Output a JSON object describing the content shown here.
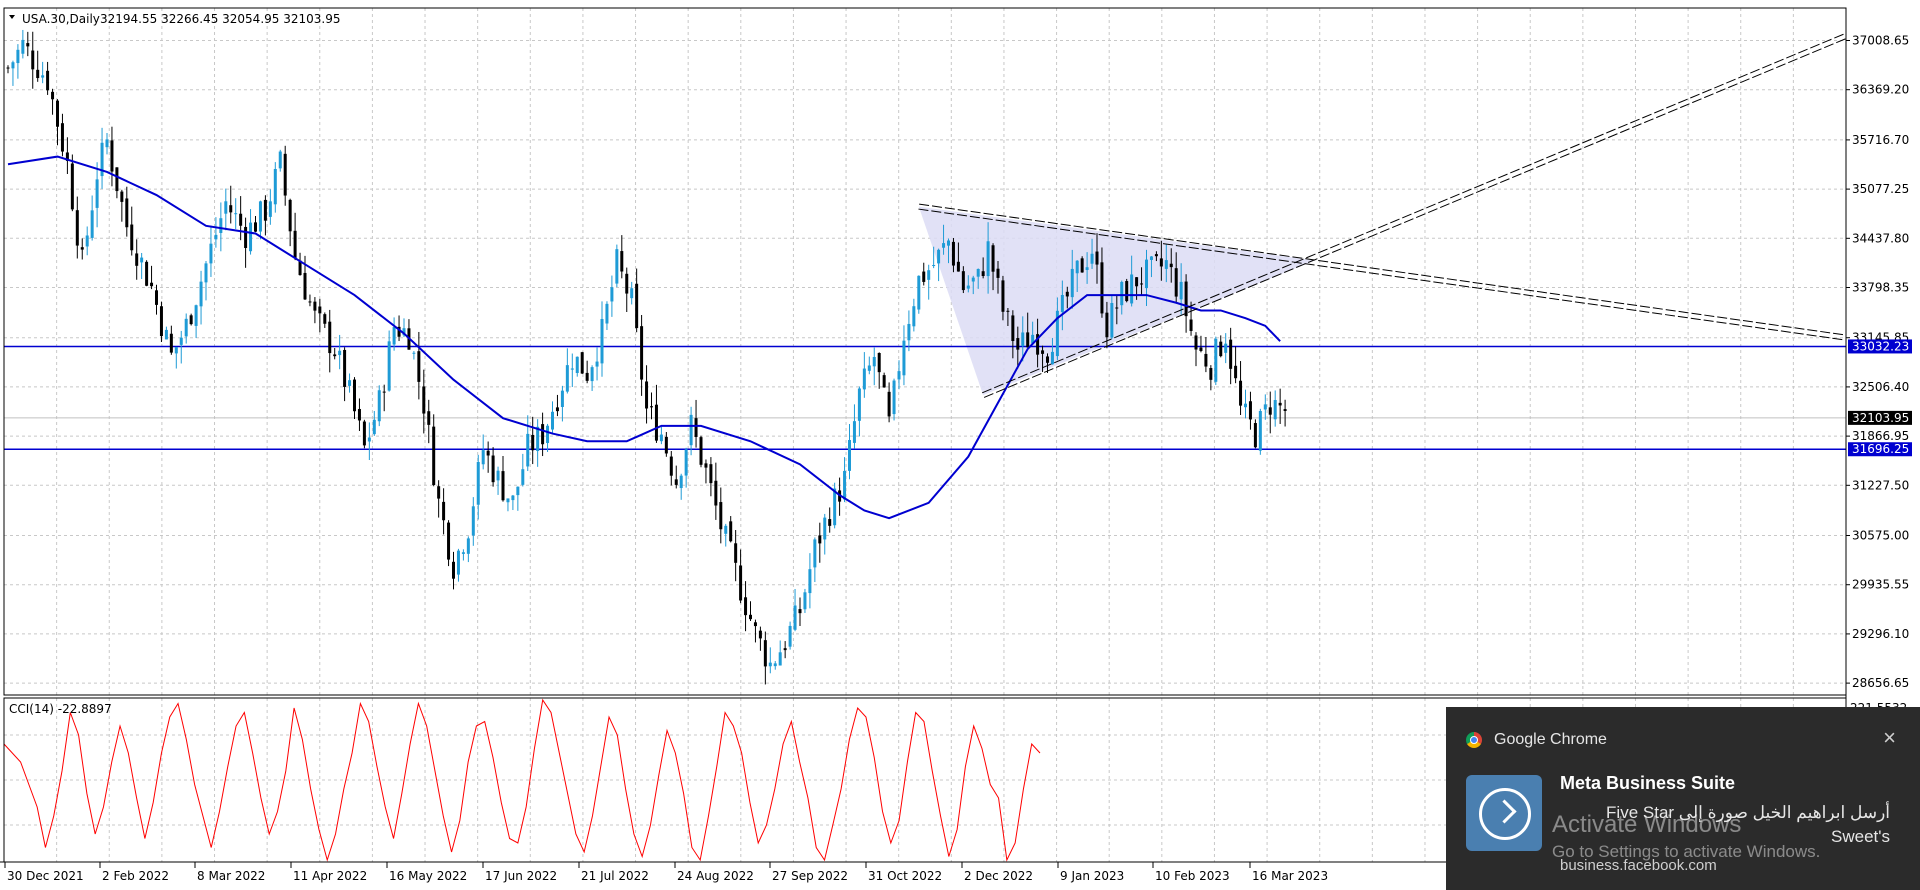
{
  "header": {
    "symbol_label": "USA.30,Daily",
    "ohlc": "32194.55 32266.45 32054.95 32103.95"
  },
  "indicator": {
    "label": "CCI(14) -22.8897",
    "scale_top": "221.5532"
  },
  "chart_data": {
    "type": "candlestick",
    "title": "USA.30,Daily",
    "ylim": [
      28400,
      37300
    ],
    "y_ticks": [
      37008.65,
      36369.2,
      35716.7,
      35077.25,
      34437.8,
      33798.35,
      33145.85,
      32506.4,
      31866.95,
      31227.5,
      30575.0,
      29935.55,
      29296.1,
      28656.65
    ],
    "x_ticks": [
      "30 Dec 2021",
      "2 Feb 2022",
      "8 Mar 2022",
      "11 Apr 2022",
      "16 May 2022",
      "17 Jun 2022",
      "21 Jul 2022",
      "24 Aug 2022",
      "27 Sep 2022",
      "31 Oct 2022",
      "2 Dec 2022",
      "9 Jan 2023",
      "10 Feb 2023",
      "16 Mar 2023"
    ],
    "price_path": [
      [
        0,
        36650
      ],
      [
        3,
        36950
      ],
      [
        8,
        36500
      ],
      [
        12,
        35400
      ],
      [
        15,
        34100
      ],
      [
        18,
        35300
      ],
      [
        20,
        35700
      ],
      [
        24,
        34600
      ],
      [
        29,
        33800
      ],
      [
        33,
        32900
      ],
      [
        36,
        33300
      ],
      [
        40,
        34100
      ],
      [
        44,
        34900
      ],
      [
        48,
        34500
      ],
      [
        52,
        34800
      ],
      [
        55,
        35400
      ],
      [
        58,
        34200
      ],
      [
        62,
        33400
      ],
      [
        66,
        33000
      ],
      [
        69,
        32400
      ],
      [
        72,
        31700
      ],
      [
        75,
        32300
      ],
      [
        78,
        33300
      ],
      [
        81,
        33200
      ],
      [
        84,
        32300
      ],
      [
        87,
        31000
      ],
      [
        90,
        30200
      ],
      [
        93,
        30700
      ],
      [
        96,
        31700
      ],
      [
        99,
        31300
      ],
      [
        102,
        31000
      ],
      [
        105,
        31700
      ],
      [
        108,
        31900
      ],
      [
        111,
        32400
      ],
      [
        114,
        32900
      ],
      [
        117,
        32700
      ],
      [
        120,
        33200
      ],
      [
        123,
        34100
      ],
      [
        126,
        33600
      ],
      [
        129,
        32200
      ],
      [
        132,
        31900
      ],
      [
        135,
        31300
      ],
      [
        138,
        32000
      ],
      [
        141,
        31400
      ],
      [
        144,
        30700
      ],
      [
        148,
        29900
      ],
      [
        151,
        29300
      ],
      [
        154,
        28900
      ],
      [
        157,
        29200
      ],
      [
        160,
        29600
      ],
      [
        163,
        30400
      ],
      [
        166,
        30900
      ],
      [
        169,
        31300
      ],
      [
        172,
        32400
      ],
      [
        175,
        32900
      ],
      [
        178,
        32000
      ],
      [
        181,
        33200
      ],
      [
        184,
        33900
      ],
      [
        187,
        34100
      ],
      [
        190,
        34400
      ],
      [
        193,
        33800
      ],
      [
        196,
        33900
      ],
      [
        198,
        34300
      ],
      [
        201,
        33500
      ],
      [
        204,
        33000
      ],
      [
        207,
        33200
      ],
      [
        210,
        33000
      ],
      [
        213,
        33500
      ],
      [
        216,
        34000
      ],
      [
        219,
        34300
      ],
      [
        222,
        33300
      ],
      [
        225,
        33700
      ],
      [
        228,
        33900
      ],
      [
        231,
        34000
      ],
      [
        234,
        34100
      ],
      [
        237,
        33700
      ],
      [
        240,
        33000
      ],
      [
        243,
        32800
      ],
      [
        246,
        33200
      ],
      [
        249,
        32200
      ],
      [
        252,
        31900
      ],
      [
        255,
        32300
      ],
      [
        258,
        32200
      ]
    ],
    "series": [
      {
        "name": "MA",
        "color": "#0000d0",
        "values": [
          [
            0,
            35400
          ],
          [
            10,
            35500
          ],
          [
            20,
            35300
          ],
          [
            30,
            35000
          ],
          [
            40,
            34600
          ],
          [
            50,
            34500
          ],
          [
            60,
            34100
          ],
          [
            70,
            33700
          ],
          [
            80,
            33200
          ],
          [
            90,
            32600
          ],
          [
            100,
            32100
          ],
          [
            110,
            31900
          ],
          [
            117,
            31800
          ],
          [
            125,
            31800
          ],
          [
            132,
            32000
          ],
          [
            140,
            32000
          ],
          [
            150,
            31800
          ],
          [
            160,
            31500
          ],
          [
            168,
            31100
          ],
          [
            173,
            30900
          ],
          [
            178,
            30800
          ],
          [
            186,
            31000
          ],
          [
            194,
            31600
          ],
          [
            200,
            32300
          ],
          [
            206,
            33000
          ],
          [
            212,
            33400
          ],
          [
            218,
            33700
          ],
          [
            224,
            33700
          ],
          [
            230,
            33700
          ],
          [
            236,
            33600
          ],
          [
            241,
            33500
          ],
          [
            245,
            33500
          ],
          [
            250,
            33400
          ],
          [
            254,
            33300
          ],
          [
            257,
            33100
          ]
        ]
      },
      {
        "name": "CCI(14)",
        "color": "#ff0000"
      }
    ],
    "horizontal_lines": [
      {
        "value": 33032.23,
        "label": "33032.23",
        "color": "#0000d0"
      },
      {
        "value": 31696.25,
        "label": "31696.25",
        "color": "#0000d0"
      }
    ],
    "current_price": {
      "value": 32103.95,
      "label": "32103.95"
    },
    "trendlines": [
      {
        "from": [
          184,
          34850
        ],
        "to": [
          371,
          33150
        ],
        "style": "double-dashed"
      },
      {
        "from": [
          197,
          32400
        ],
        "to": [
          371,
          37060
        ],
        "style": "double-dashed"
      }
    ],
    "triangle": {
      "points": [
        [
          184,
          34850
        ],
        [
          197,
          32400
        ],
        [
          264,
          34150
        ]
      ],
      "color": "#dcdcf5"
    },
    "cci_values": [
      80,
      60,
      40,
      -10,
      -60,
      -150,
      -80,
      20,
      150,
      100,
      -30,
      -120,
      -60,
      40,
      120,
      60,
      -40,
      -130,
      -50,
      60,
      140,
      170,
      90,
      -10,
      -80,
      -150,
      -70,
      30,
      120,
      150,
      60,
      -40,
      -120,
      -70,
      20,
      160,
      90,
      -20,
      -110,
      -190,
      -120,
      -20,
      60,
      170,
      130,
      30,
      -60,
      -130,
      -30,
      80,
      170,
      120,
      20,
      -80,
      -160,
      -90,
      40,
      120,
      130,
      50,
      -50,
      -130,
      -140,
      -60,
      70,
      190,
      150,
      60,
      -30,
      -120,
      -160,
      -80,
      30,
      140,
      100,
      -20,
      -120,
      -170,
      -100,
      10,
      110,
      60,
      -30,
      -150,
      -180,
      -80,
      30,
      150,
      120,
      60,
      -50,
      -140,
      -100,
      -20,
      80,
      130,
      40,
      -40,
      -150,
      -190,
      -100,
      -20,
      90,
      160,
      140,
      50,
      -70,
      -140,
      -90,
      40,
      150,
      130,
      20,
      -80,
      -170,
      -110,
      30,
      120,
      70,
      -10,
      -40,
      -180,
      -140,
      -20,
      80,
      60
    ]
  },
  "toast": {
    "app_name": "Google Chrome",
    "title": "Meta Business Suite",
    "body": "أرسل ابراهيم الخيل صورة إلى Five Star Sweet's",
    "watermark_line1": "Activate Windows",
    "watermark_line2": "Go to Settings to activate Windows.",
    "source": "business.facebook.com",
    "close_icon": "×"
  }
}
